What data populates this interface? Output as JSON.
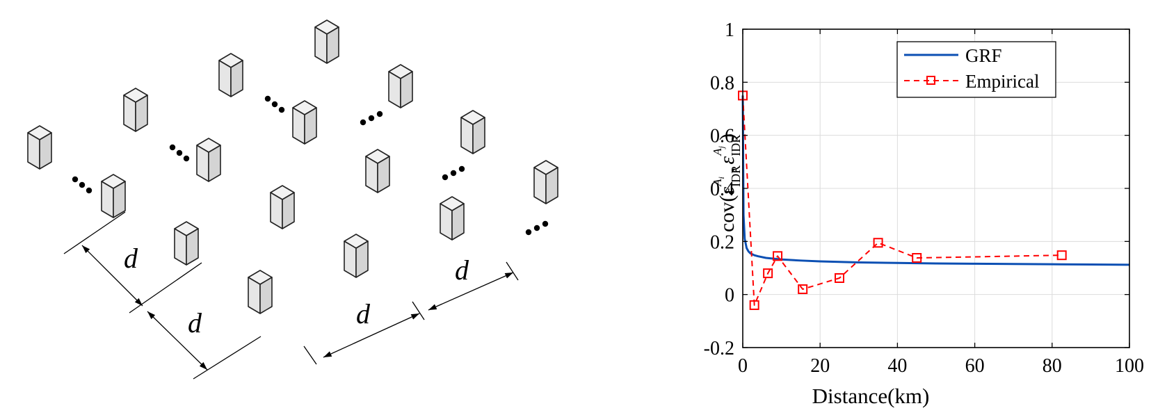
{
  "figure": {
    "left_panel": {
      "dimension_label": "d",
      "ellipsis": "⋯"
    },
    "chart_data": {
      "type": "line",
      "xlabel": "Distance(km)",
      "ylabel_parts": {
        "prefix": "cov(",
        "eps": "ε",
        "sub": "IDR",
        "sup_i": "A",
        "sup_i_sub": "i",
        "sup_j": "A",
        "sup_j_sub": "j",
        "comma": ",",
        "suffix": ")"
      },
      "xlim": [
        0,
        100
      ],
      "ylim": [
        -0.2,
        1
      ],
      "xticks": [
        0,
        20,
        40,
        60,
        80,
        100
      ],
      "yticks": [
        -0.2,
        0,
        0.2,
        0.4,
        0.6,
        0.8,
        1
      ],
      "ytick_labels": [
        "-0.2",
        "0",
        "0.2",
        "0.4",
        "0.6",
        "0.8",
        "1"
      ],
      "grid": true,
      "legend_placement": "top-right",
      "series": [
        {
          "name": "GRF",
          "style": "solid",
          "color": "#0b4fb3",
          "x": [
            0,
            0.2,
            0.5,
            1,
            1.5,
            2,
            3,
            4,
            6,
            8,
            10,
            15,
            20,
            30,
            40,
            50,
            60,
            70,
            80,
            90,
            100
          ],
          "y": [
            0.75,
            0.3,
            0.21,
            0.175,
            0.162,
            0.155,
            0.148,
            0.144,
            0.138,
            0.135,
            0.132,
            0.128,
            0.125,
            0.121,
            0.119,
            0.117,
            0.116,
            0.115,
            0.114,
            0.113,
            0.112
          ]
        },
        {
          "name": "Empirical",
          "style": "dashed",
          "marker": "square",
          "color": "#ff0000",
          "x": [
            0,
            3,
            6.5,
            9,
            15.5,
            25,
            35,
            45,
            82.5
          ],
          "y": [
            0.75,
            -0.04,
            0.08,
            0.145,
            0.02,
            0.062,
            0.195,
            0.138,
            0.148
          ]
        }
      ]
    }
  }
}
